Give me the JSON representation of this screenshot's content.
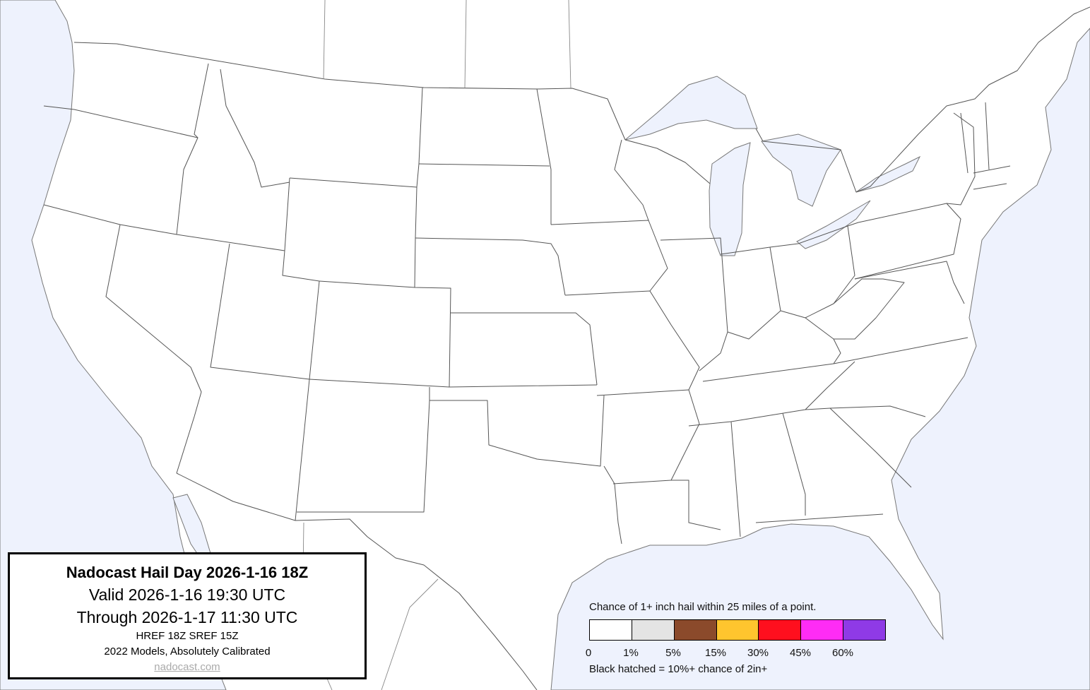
{
  "title_box": {
    "title": "Nadocast Hail Day 2026-1-16 18Z",
    "valid": "Valid 2026-1-16 19:30 UTC",
    "through": "Through 2026-1-17 11:30 UTC",
    "models": "HREF 18Z SREF 15Z",
    "calibration": "2022 Models, Absolutely Calibrated",
    "link": "nadocast.com"
  },
  "legend": {
    "caption": "Chance of 1+ inch hail within 25 miles of a point.",
    "bins": [
      {
        "label": "0",
        "color": "#ffffff"
      },
      {
        "label": "1%",
        "color": "#e4e4e4"
      },
      {
        "label": "5%",
        "color": "#8b4a2b"
      },
      {
        "label": "15%",
        "color": "#ffc52e"
      },
      {
        "label": "30%",
        "color": "#ff0f1e"
      },
      {
        "label": "45%",
        "color": "#ff2cf5"
      },
      {
        "label": "60%",
        "color": "#8f3ae6"
      }
    ],
    "note": "Black hatched = 10%+ chance of 2in+"
  },
  "colors": {
    "water": "#eef2fd",
    "land": "#ffffff",
    "borders": "#555555"
  }
}
